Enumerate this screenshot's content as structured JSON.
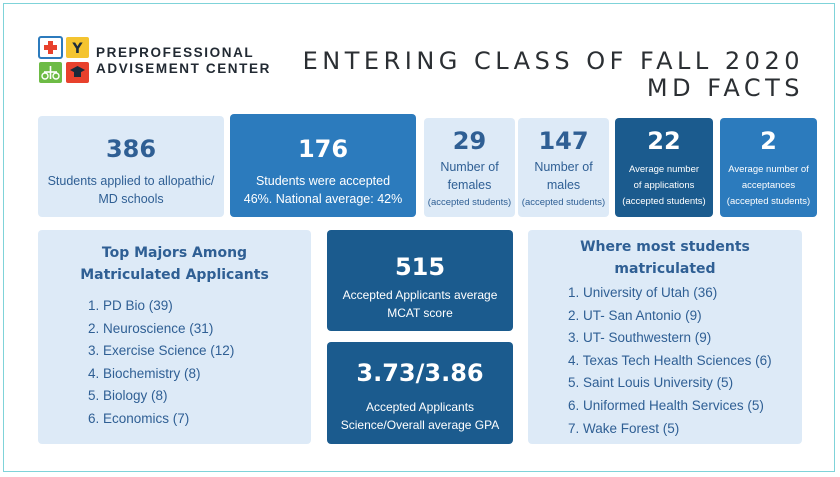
{
  "org": {
    "line1": "PREPROFESSIONAL",
    "line2": "ADVISEMENT CENTER",
    "logo_letter": "Y"
  },
  "title": {
    "line1": "ENTERING CLASS OF FALL 2020",
    "line2": "MD FACTS"
  },
  "stats": {
    "applied": {
      "value": "386",
      "line1": "Students applied to allopathic/",
      "line2": "MD schools"
    },
    "accepted": {
      "value": "176",
      "line1": "Students were accepted",
      "line2": "46%. National average: 42%"
    },
    "females": {
      "value": "29",
      "line1": "Number of",
      "line2": "females",
      "note": "(accepted students)"
    },
    "males": {
      "value": "147",
      "line1": "Number of",
      "line2": "males",
      "note": "(accepted students)"
    },
    "avg_applications": {
      "value": "22",
      "line1": "Average number",
      "line2": "of applications",
      "note": "(accepted students)"
    },
    "avg_acceptances": {
      "value": "2",
      "line1": "Average number of",
      "line2": "acceptances",
      "note": "(accepted students)"
    },
    "mcat": {
      "value": "515",
      "line1": "Accepted Applicants average",
      "line2": "MCAT score"
    },
    "gpa": {
      "value": "3.73/3.86",
      "line1": "Accepted Applicants",
      "line2": "Science/Overall average GPA"
    }
  },
  "majors": {
    "heading1": "Top Majors Among",
    "heading2": "Matriculated Applicants",
    "items": [
      "1. PD Bio (39)",
      "2. Neuroscience (31)",
      "3. Exercise Science (12)",
      "4. Biochemistry (8)",
      "5. Biology (8)",
      "6. Economics (7)"
    ]
  },
  "schools": {
    "heading1": "Where most students",
    "heading2": "matriculated",
    "items": [
      "1. University of Utah (36)",
      "2. UT- San Antonio (9)",
      "3. UT- Southwestern (9)",
      "4. Texas Tech Health Sciences (6)",
      "5. Saint Louis University (5)",
      "6. Uniformed Health Services (5)",
      "7.  Wake Forest (5)"
    ]
  },
  "colors": {
    "light_card": "#ddeaf7",
    "mid_card": "#2c7bbd",
    "dark_card": "#1b5b8e",
    "text_blue": "#2f5f94",
    "frame": "#7fd3d9"
  }
}
